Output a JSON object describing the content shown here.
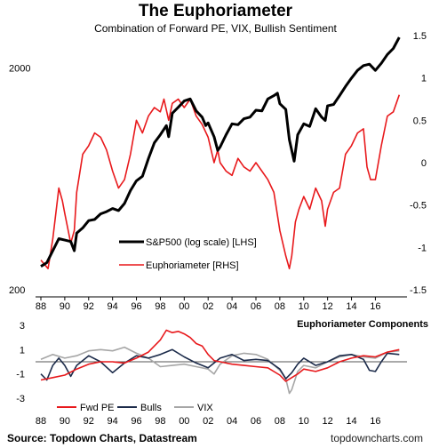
{
  "title": "The Euphoriameter",
  "subtitle": "Combination of Forward PE, VIX, Bullish Sentiment",
  "footer": {
    "source": "Source: Topdown Charts, Datastream",
    "site": "topdowncharts.com"
  },
  "chart_data": [
    {
      "type": "line",
      "title": "The Euphoriameter",
      "x_tick_labels": [
        "88",
        "90",
        "92",
        "94",
        "96",
        "98",
        "00",
        "02",
        "04",
        "06",
        "08",
        "10",
        "12",
        "14",
        "16"
      ],
      "xlim": [
        1988,
        2018.2
      ],
      "left_axis": {
        "scale": "log",
        "ylim": [
          200,
          2800
        ],
        "tick_labels": [
          "2000",
          "200"
        ],
        "tick_values": [
          2000,
          200
        ]
      },
      "right_axis": {
        "ylim": [
          -1.5,
          1.5
        ],
        "tick_labels": [
          "1.5",
          "1",
          "0.5",
          "0",
          "-0.5",
          "-1",
          "-1.5"
        ]
      },
      "legend_position": "center-left",
      "series": [
        {
          "name": "S&P500 (log scale) [LHS]",
          "axis": "left",
          "color": "#000000",
          "x": [
            1988.0,
            1988.5,
            1989.0,
            1989.5,
            1990.0,
            1990.5,
            1990.8,
            1991.0,
            1991.5,
            1992.0,
            1992.5,
            1993.0,
            1993.5,
            1994.0,
            1994.5,
            1995.0,
            1995.5,
            1996.0,
            1996.5,
            1997.0,
            1997.5,
            1998.0,
            1998.5,
            1998.7,
            1999.0,
            1999.5,
            2000.0,
            2000.5,
            2001.0,
            2001.5,
            2001.8,
            2002.0,
            2002.5,
            2002.8,
            2003.0,
            2003.5,
            2004.0,
            2004.5,
            2005.0,
            2005.5,
            2006.0,
            2006.5,
            2007.0,
            2007.5,
            2007.8,
            2008.0,
            2008.5,
            2008.8,
            2009.0,
            2009.2,
            2009.5,
            2010.0,
            2010.5,
            2011.0,
            2011.5,
            2011.8,
            2012.0,
            2012.5,
            2013.0,
            2013.5,
            2014.0,
            2014.5,
            2015.0,
            2015.5,
            2016.0,
            2016.5,
            2017.0,
            2017.5,
            2018.0
          ],
          "values": [
            255,
            265,
            300,
            340,
            335,
            330,
            300,
            360,
            380,
            410,
            415,
            440,
            450,
            465,
            455,
            490,
            560,
            620,
            650,
            780,
            920,
            1000,
            1100,
            980,
            1250,
            1330,
            1420,
            1450,
            1280,
            1200,
            1100,
            1130,
            980,
            850,
            880,
            1000,
            1120,
            1110,
            1180,
            1200,
            1290,
            1280,
            1450,
            1500,
            1540,
            1380,
            1300,
            950,
            850,
            760,
            1000,
            1120,
            1090,
            1310,
            1200,
            1160,
            1350,
            1370,
            1500,
            1650,
            1800,
            1950,
            2050,
            2080,
            1950,
            2100,
            2300,
            2450,
            2750
          ]
        },
        {
          "name": "Euphoriameter [RHS]",
          "axis": "right",
          "color": "#e8191c",
          "x": [
            1988.0,
            1988.6,
            1989.0,
            1989.5,
            1989.8,
            1990.0,
            1990.5,
            1990.8,
            1991.0,
            1991.5,
            1992.0,
            1992.5,
            1993.0,
            1993.5,
            1994.0,
            1994.5,
            1995.0,
            1995.5,
            1996.0,
            1996.5,
            1997.0,
            1997.5,
            1998.0,
            1998.3,
            1998.7,
            1999.0,
            1999.5,
            2000.0,
            2000.5,
            2001.0,
            2001.5,
            2002.0,
            2002.5,
            2002.8,
            2003.0,
            2003.5,
            2004.0,
            2004.5,
            2005.0,
            2005.5,
            2006.0,
            2006.5,
            2007.0,
            2007.5,
            2008.0,
            2008.5,
            2008.8,
            2009.0,
            2009.3,
            2009.6,
            2010.0,
            2010.5,
            2011.0,
            2011.5,
            2011.8,
            2012.0,
            2012.5,
            2013.0,
            2013.5,
            2014.0,
            2014.5,
            2015.0,
            2015.3,
            2015.6,
            2016.0,
            2016.5,
            2017.0,
            2017.5,
            2018.0
          ],
          "values": [
            -1.15,
            -1.25,
            -0.9,
            -0.3,
            -0.45,
            -0.6,
            -0.95,
            -0.8,
            -0.35,
            0.1,
            0.2,
            0.35,
            0.3,
            0.15,
            -0.1,
            -0.3,
            -0.2,
            0.1,
            0.5,
            0.35,
            0.55,
            0.65,
            0.6,
            0.75,
            0.5,
            0.7,
            0.75,
            0.65,
            0.75,
            0.55,
            0.45,
            0.3,
            0.0,
            0.15,
            0.0,
            -0.1,
            -0.15,
            0.05,
            -0.05,
            -0.1,
            0.0,
            -0.1,
            -0.2,
            -0.35,
            -0.8,
            -1.1,
            -1.25,
            -1.1,
            -0.7,
            -0.55,
            -0.4,
            -0.55,
            -0.3,
            -0.45,
            -0.75,
            -0.55,
            -0.35,
            -0.3,
            0.1,
            0.2,
            0.35,
            0.4,
            -0.05,
            -0.2,
            -0.2,
            0.2,
            0.55,
            0.6,
            0.8
          ]
        }
      ]
    },
    {
      "type": "line",
      "title": "Euphoriameter Components",
      "x_tick_labels": [
        "88",
        "90",
        "92",
        "94",
        "96",
        "98",
        "00",
        "02",
        "04",
        "06",
        "08",
        "10",
        "12",
        "14",
        "16"
      ],
      "xlim": [
        1988,
        2018.2
      ],
      "ylim": [
        -3,
        3
      ],
      "y_tick_labels": [
        "3",
        "1",
        "-1",
        "-3"
      ],
      "legend_position": "bottom-left",
      "series": [
        {
          "name": "Fwd PE",
          "color": "#e8191c",
          "x": [
            1988.0,
            1989.0,
            1990.0,
            1991.0,
            1992.0,
            1993.0,
            1994.0,
            1995.0,
            1996.0,
            1997.0,
            1998.0,
            1998.5,
            1999.0,
            1999.5,
            2000.0,
            2000.5,
            2001.0,
            2001.5,
            2002.0,
            2002.5,
            2003.0,
            2004.0,
            2005.0,
            2006.0,
            2007.0,
            2008.0,
            2008.5,
            2009.0,
            2009.5,
            2010.0,
            2011.0,
            2012.0,
            2013.0,
            2014.0,
            2015.0,
            2016.0,
            2017.0,
            2018.0
          ],
          "values": [
            -1.5,
            -1.3,
            -1.1,
            -0.6,
            -0.2,
            0.0,
            0.0,
            -0.1,
            0.3,
            0.8,
            1.8,
            2.6,
            2.4,
            2.5,
            2.3,
            2.0,
            1.5,
            1.3,
            0.6,
            0.1,
            0.0,
            -0.2,
            -0.3,
            -0.4,
            -0.5,
            -1.1,
            -1.6,
            -1.3,
            -1.0,
            -0.6,
            -0.8,
            -0.5,
            0.0,
            0.3,
            0.5,
            0.4,
            0.8,
            1.0
          ]
        },
        {
          "name": "Bulls",
          "color": "#1c2b4a",
          "x": [
            1988.0,
            1988.5,
            1989.0,
            1989.5,
            1990.0,
            1990.5,
            1991.0,
            1992.0,
            1993.0,
            1994.0,
            1995.0,
            1996.0,
            1997.0,
            1998.0,
            1999.0,
            2000.0,
            2001.0,
            2002.0,
            2003.0,
            2004.0,
            2005.0,
            2006.0,
            2007.0,
            2008.0,
            2008.5,
            2009.0,
            2009.5,
            2010.0,
            2011.0,
            2012.0,
            2013.0,
            2014.0,
            2015.0,
            2015.5,
            2016.0,
            2016.5,
            2017.0,
            2018.0
          ],
          "values": [
            -1.0,
            -1.5,
            -0.3,
            0.3,
            -0.3,
            -1.2,
            -0.3,
            0.5,
            0.0,
            -0.9,
            -0.1,
            0.5,
            0.3,
            0.6,
            1.0,
            0.4,
            -0.1,
            -0.5,
            0.3,
            0.6,
            0.1,
            0.2,
            0.1,
            -0.6,
            -1.4,
            -0.9,
            -0.2,
            0.3,
            -0.3,
            0.0,
            0.5,
            0.6,
            0.2,
            -0.7,
            -0.8,
            0.0,
            0.7,
            0.6
          ]
        },
        {
          "name": "VIX",
          "color": "#a6a6a6",
          "x": [
            1988.0,
            1989.0,
            1990.0,
            1991.0,
            1992.0,
            1993.0,
            1994.0,
            1995.0,
            1996.0,
            1997.0,
            1998.0,
            1999.0,
            2000.0,
            2001.0,
            2002.0,
            2002.5,
            2003.0,
            2004.0,
            2005.0,
            2006.0,
            2007.0,
            2008.0,
            2008.5,
            2008.8,
            2009.0,
            2009.5,
            2010.0,
            2011.0,
            2012.0,
            2013.0,
            2014.0,
            2015.0,
            2016.0,
            2017.0,
            2018.0
          ],
          "values": [
            0.2,
            0.6,
            0.3,
            0.5,
            0.9,
            1.0,
            0.9,
            1.2,
            0.7,
            0.3,
            -0.4,
            -0.3,
            -0.2,
            -0.4,
            -0.6,
            -1.0,
            -0.2,
            0.5,
            0.7,
            0.6,
            0.2,
            -0.7,
            -1.4,
            -2.6,
            -2.3,
            -0.8,
            -0.3,
            -0.5,
            0.0,
            0.4,
            0.6,
            0.4,
            0.3,
            0.8,
            0.9
          ]
        }
      ]
    }
  ]
}
